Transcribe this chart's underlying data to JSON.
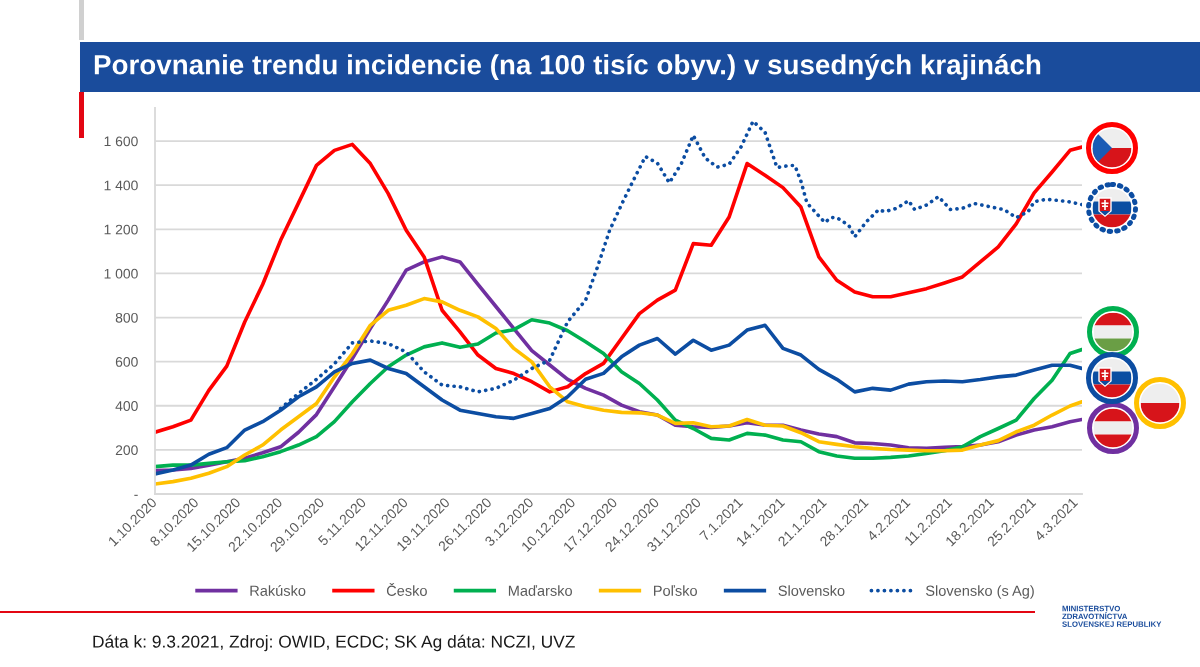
{
  "chart_data": {
    "type": "line",
    "title": "Porovnanie trendu incidencie (na 100 tisíc obyv.) v susedných krajinách",
    "x": [
      "2020-10-01",
      "2020-10-04",
      "2020-10-07",
      "2020-10-10",
      "2020-10-13",
      "2020-10-16",
      "2020-10-19",
      "2020-10-22",
      "2020-10-25",
      "2020-10-28",
      "2020-10-31",
      "2020-11-03",
      "2020-11-06",
      "2020-11-09",
      "2020-11-12",
      "2020-11-15",
      "2020-11-18",
      "2020-11-21",
      "2020-11-24",
      "2020-11-27",
      "2020-11-30",
      "2020-12-03",
      "2020-12-06",
      "2020-12-09",
      "2020-12-12",
      "2020-12-15",
      "2020-12-18",
      "2020-12-21",
      "2020-12-24",
      "2020-12-27",
      "2020-12-30",
      "2021-01-02",
      "2021-01-05",
      "2021-01-08",
      "2021-01-11",
      "2021-01-14",
      "2021-01-17",
      "2021-01-20",
      "2021-01-23",
      "2021-01-26",
      "2021-01-29",
      "2021-02-01",
      "2021-02-04",
      "2021-02-07",
      "2021-02-10",
      "2021-02-13",
      "2021-02-16",
      "2021-02-19",
      "2021-02-22",
      "2021-02-25",
      "2021-02-28",
      "2021-03-03",
      "2021-03-05"
    ],
    "xlim": [
      "2020-10-01",
      "2021-03-05"
    ],
    "xticks": [
      {
        "value": "2020-10-01",
        "label": "1.10.2020"
      },
      {
        "value": "2020-10-08",
        "label": "8.10.2020"
      },
      {
        "value": "2020-10-15",
        "label": "15.10.2020"
      },
      {
        "value": "2020-10-22",
        "label": "22.10.2020"
      },
      {
        "value": "2020-10-29",
        "label": "29.10.2020"
      },
      {
        "value": "2020-11-05",
        "label": "5.11.2020"
      },
      {
        "value": "2020-11-12",
        "label": "12.11.2020"
      },
      {
        "value": "2020-11-19",
        "label": "19.11.2020"
      },
      {
        "value": "2020-11-26",
        "label": "26.11.2020"
      },
      {
        "value": "2020-12-03",
        "label": "3.12.2020"
      },
      {
        "value": "2020-12-10",
        "label": "10.12.2020"
      },
      {
        "value": "2020-12-17",
        "label": "17.12.2020"
      },
      {
        "value": "2020-12-24",
        "label": "24.12.2020"
      },
      {
        "value": "2020-12-31",
        "label": "31.12.2020"
      },
      {
        "value": "2021-01-07",
        "label": "7.1.2021"
      },
      {
        "value": "2021-01-14",
        "label": "14.1.2021"
      },
      {
        "value": "2021-01-21",
        "label": "21.1.2021"
      },
      {
        "value": "2021-01-28",
        "label": "28.1.2021"
      },
      {
        "value": "2021-02-04",
        "label": "4.2.2021"
      },
      {
        "value": "2021-02-11",
        "label": "11.2.2021"
      },
      {
        "value": "2021-02-18",
        "label": "18.2.2021"
      },
      {
        "value": "2021-02-25",
        "label": "25.2.2021"
      },
      {
        "value": "2021-03-04",
        "label": "4.3.2021"
      }
    ],
    "ylim": [
      0,
      1750
    ],
    "yticks": [
      {
        "value": 0,
        "label": "-"
      },
      200,
      400,
      600,
      800,
      {
        "value": 1000,
        "label": "1 000"
      },
      {
        "value": 1200,
        "label": "1 200"
      },
      {
        "value": 1400,
        "label": "1 400"
      },
      {
        "value": 1600,
        "label": "1 600"
      }
    ],
    "grid": "y",
    "legend": "bottom",
    "line_style": "solid",
    "series": [
      {
        "name": "Rakúsko",
        "color": "#7030a0",
        "values": [
          106,
          109,
          116,
          131,
          146,
          162,
          187,
          214,
          280,
          360,
          486,
          614,
          750,
          879,
          1015,
          1052,
          1075,
          1052,
          950,
          850,
          750,
          650,
          585,
          520,
          479,
          448,
          403,
          373,
          358,
          312,
          305,
          302,
          308,
          323,
          312,
          312,
          290,
          272,
          260,
          232,
          229,
          222,
          210,
          207,
          212,
          215,
          222,
          237,
          267,
          290,
          305,
          328,
          338
        ]
      },
      {
        "name": "Česko",
        "color": "#ff0000",
        "values": [
          280,
          305,
          335,
          470,
          580,
          780,
          950,
          1150,
          1320,
          1490,
          1558,
          1585,
          1498,
          1362,
          1196,
          1075,
          833,
          735,
          630,
          569,
          546,
          509,
          463,
          486,
          546,
          592,
          705,
          818,
          879,
          924,
          1135,
          1128,
          1256,
          1498,
          1445,
          1389,
          1301,
          1075,
          969,
          916,
          894,
          894,
          912,
          931,
          957,
          984,
          1052,
          1120,
          1225,
          1365,
          1460,
          1558,
          1573
        ]
      },
      {
        "name": "Maďarsko",
        "color": "#00b050",
        "values": [
          124,
          131,
          131,
          139,
          146,
          151,
          169,
          192,
          222,
          260,
          328,
          418,
          501,
          577,
          630,
          667,
          685,
          665,
          680,
          730,
          745,
          790,
          775,
          740,
          690,
          637,
          554,
          501,
          426,
          335,
          297,
          252,
          245,
          275,
          267,
          245,
          237,
          192,
          172,
          162,
          162,
          166,
          172,
          184,
          196,
          214,
          260,
          297,
          335,
          433,
          516,
          637,
          655
        ]
      },
      {
        "name": "Poľsko",
        "color": "#ffc000",
        "values": [
          45,
          56,
          71,
          94,
          124,
          177,
          222,
          290,
          350,
          410,
          530,
          637,
          765,
          833,
          856,
          886,
          871,
          833,
          803,
          750,
          660,
          599,
          486,
          418,
          396,
          380,
          370,
          368,
          358,
          320,
          323,
          305,
          308,
          338,
          312,
          308,
          278,
          237,
          225,
          214,
          207,
          202,
          199,
          196,
          196,
          199,
          222,
          242,
          282,
          312,
          358,
          399,
          418
        ]
      },
      {
        "name": "Slovensko",
        "color": "#0c4da2",
        "values": [
          91,
          109,
          131,
          180,
          210,
          290,
          328,
          380,
          441,
          486,
          554,
          592,
          607,
          569,
          546,
          486,
          426,
          380,
          365,
          350,
          343,
          365,
          388,
          441,
          520,
          547,
          622,
          675,
          705,
          634,
          697,
          652,
          675,
          743,
          765,
          660,
          630,
          565,
          520,
          463,
          479,
          471,
          498,
          509,
          512,
          509,
          519,
          531,
          539,
          562,
          584,
          584,
          569
        ]
      },
      {
        "name": "Slovensko (s Ag)",
        "color": "#0c4da2",
        "line_style": "dotted",
        "x": [
          "2020-10-22",
          "2020-10-25",
          "2020-10-28",
          "2020-10-31",
          "2020-11-03",
          "2020-11-06",
          "2020-11-09",
          "2020-11-12",
          "2020-11-15",
          "2020-11-18",
          "2020-11-21",
          "2020-11-24",
          "2020-11-27",
          "2020-11-30",
          "2020-12-03",
          "2020-12-06",
          "2020-12-09",
          "2020-12-12",
          "2020-12-14",
          "2020-12-16",
          "2020-12-18",
          "2020-12-20",
          "2020-12-22",
          "2020-12-24",
          "2020-12-26",
          "2020-12-28",
          "2020-12-30",
          "2021-01-01",
          "2021-01-03",
          "2021-01-05",
          "2021-01-07",
          "2021-01-09",
          "2021-01-11",
          "2021-01-13",
          "2021-01-15",
          "2021-01-16",
          "2021-01-17",
          "2021-01-18",
          "2021-01-19",
          "2021-01-21",
          "2021-01-22",
          "2021-01-23",
          "2021-01-25",
          "2021-01-26",
          "2021-01-28",
          "2021-01-30",
          "2021-01-31",
          "2021-02-02",
          "2021-02-04",
          "2021-02-05",
          "2021-02-07",
          "2021-02-09",
          "2021-02-11",
          "2021-02-13",
          "2021-02-15",
          "2021-02-18",
          "2021-02-20",
          "2021-02-22",
          "2021-02-24",
          "2021-02-25",
          "2021-02-27",
          "2021-03-01",
          "2021-03-03",
          "2021-03-05"
        ],
        "values": [
          388,
          456,
          520,
          590,
          685,
          694,
          682,
          644,
          554,
          494,
          486,
          463,
          479,
          516,
          569,
          607,
          781,
          879,
          1030,
          1194,
          1312,
          1423,
          1530,
          1500,
          1411,
          1497,
          1626,
          1523,
          1482,
          1495,
          1574,
          1690,
          1640,
          1480,
          1489,
          1489,
          1418,
          1320,
          1290,
          1231,
          1253,
          1253,
          1218,
          1166,
          1236,
          1289,
          1280,
          1295,
          1330,
          1290,
          1310,
          1348,
          1290,
          1295,
          1317,
          1300,
          1289,
          1253,
          1280,
          1325,
          1336,
          1331,
          1324,
          1312
        ]
      }
    ],
    "annotations": [
      "Dáta k: 9.3.2021, Zdroj: OWID, ECDC; SK Ag dáta: NCZI, UVZ",
      "MINISTERSTVO\nZDRAVOTNÍCTVA\nSLOVENSKEJ REPUBLIKY"
    ]
  }
}
